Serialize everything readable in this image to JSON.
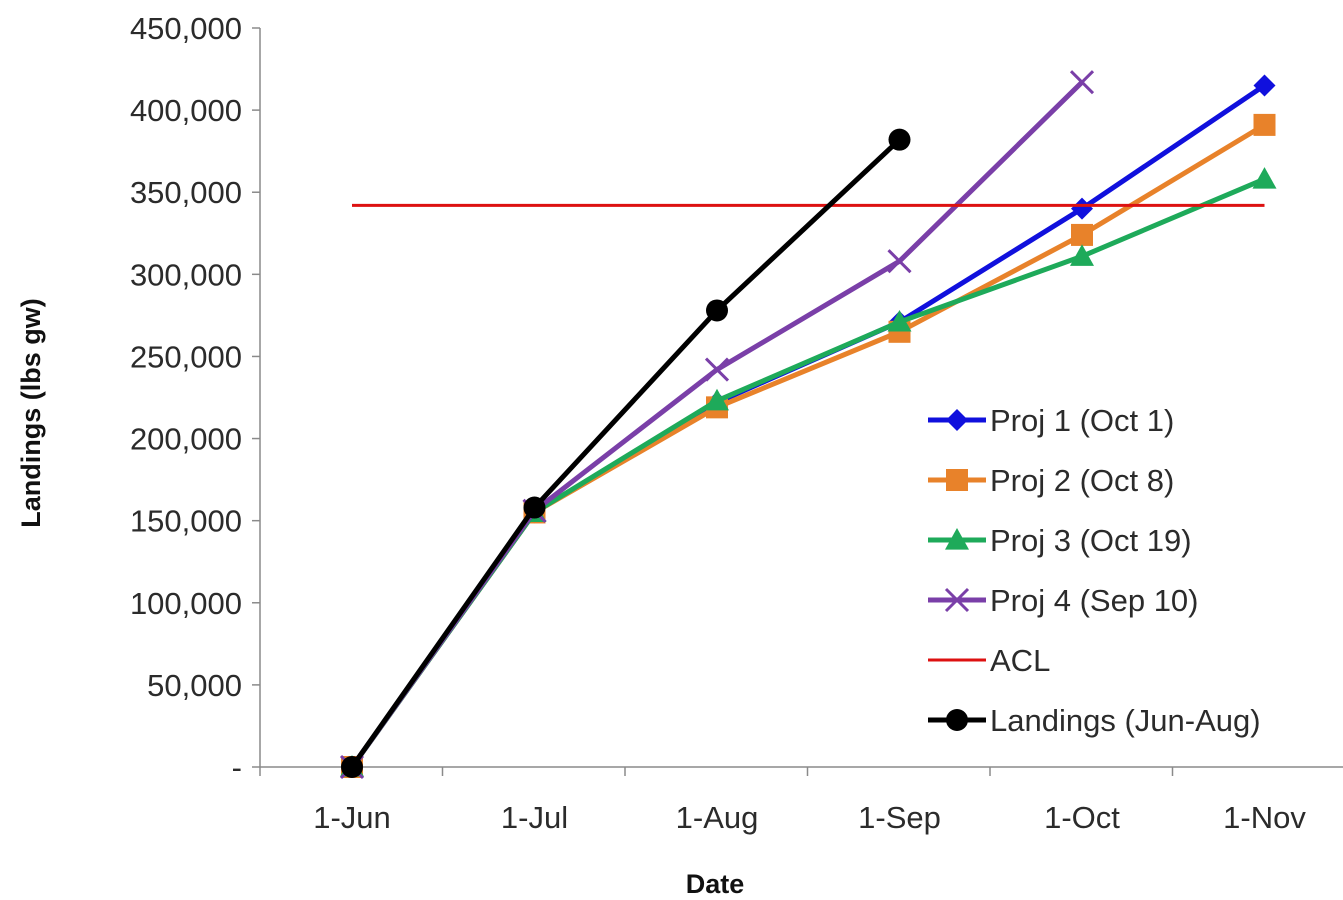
{
  "chart_data": {
    "type": "line",
    "xlabel": "Date",
    "ylabel": "Landings (lbs gw)",
    "categories": [
      "1-Jun",
      "1-Jul",
      "1-Aug",
      "1-Sep",
      "1-Oct",
      "1-Nov"
    ],
    "y_tick_labels": [
      "-",
      "50,000",
      "100,000",
      "150,000",
      "200,000",
      "250,000",
      "300,000",
      "350,000",
      "400,000",
      "450,000"
    ],
    "ylim": [
      0,
      450000
    ],
    "grid": false,
    "legend_position": "right",
    "series": [
      {
        "name": "Proj 1 (Oct 1)",
        "color": "#1010dd",
        "marker": "diamond",
        "values": [
          0,
          155000,
          222000,
          271000,
          340000,
          415000
        ]
      },
      {
        "name": "Proj 2 (Oct 8)",
        "color": "#e8822a",
        "marker": "square",
        "values": [
          0,
          155000,
          219000,
          265000,
          324000,
          391000
        ]
      },
      {
        "name": "Proj 3 (Oct 19)",
        "color": "#1eaa5a",
        "marker": "triangle",
        "values": [
          0,
          155000,
          223000,
          271000,
          311000,
          358000
        ]
      },
      {
        "name": "Proj 4 (Sep 10)",
        "color": "#7a3fa8",
        "marker": "x",
        "values": [
          0,
          156000,
          242000,
          308000,
          417000,
          null
        ]
      },
      {
        "name": "ACL",
        "color": "#dd1111",
        "marker": "none",
        "values": [
          342000,
          342000,
          342000,
          342000,
          342000,
          342000
        ]
      },
      {
        "name": "Landings (Jun-Aug)",
        "color": "#000000",
        "marker": "circle",
        "values": [
          0,
          158000,
          278000,
          382000,
          null,
          null
        ]
      }
    ]
  }
}
